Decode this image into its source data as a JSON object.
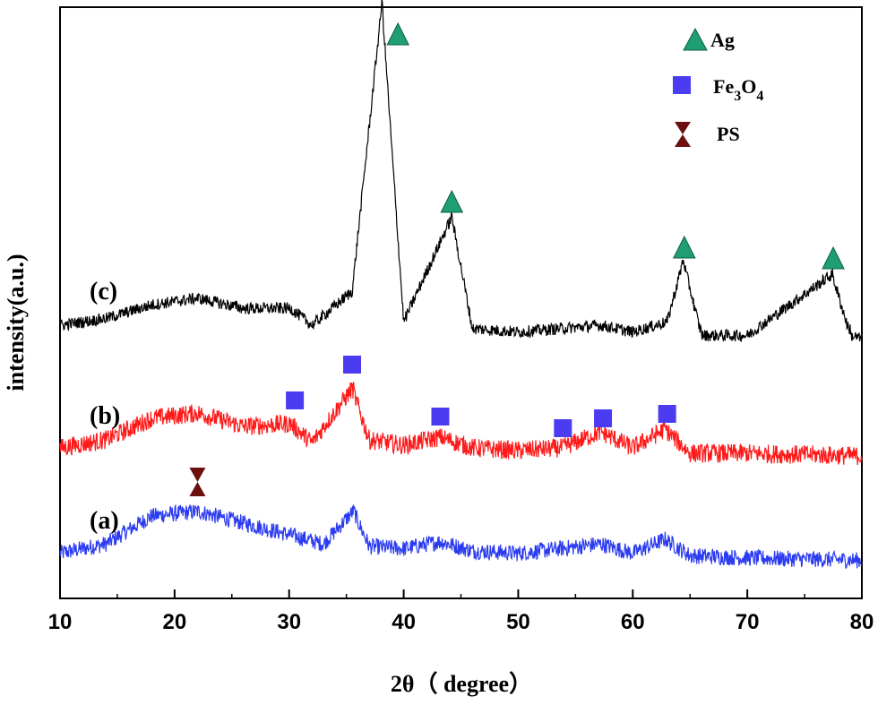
{
  "chart_data": {
    "type": "line",
    "xlabel": "2θ（ degree）",
    "ylabel": "intensity(a.u.)",
    "xlim": [
      10,
      80
    ],
    "xticks": [
      10,
      20,
      30,
      40,
      50,
      60,
      70,
      80
    ],
    "xtick_labels": [
      "10",
      "20",
      "30",
      "40",
      "50",
      "60",
      "70",
      "80"
    ],
    "y_ticks_shown": false,
    "grid": false,
    "colors": {
      "a": "#2b3bf0",
      "b": "#ff1a1a",
      "c": "#000000",
      "ag": "#1f9e73",
      "fe3o4": "#4b3cf2",
      "ps": "#6b0f0f"
    },
    "series": [
      {
        "name": "(a)",
        "baseline": 0.05,
        "points": [
          [
            10,
            0.04
          ],
          [
            14,
            0.08
          ],
          [
            18,
            0.2
          ],
          [
            22,
            0.22
          ],
          [
            26,
            0.17
          ],
          [
            30,
            0.12
          ],
          [
            33,
            0.08
          ],
          [
            35.6,
            0.22
          ],
          [
            37,
            0.07
          ],
          [
            40,
            0.06
          ],
          [
            43.2,
            0.09
          ],
          [
            46,
            0.05
          ],
          [
            50,
            0.04
          ],
          [
            53.7,
            0.06
          ],
          [
            57.2,
            0.08
          ],
          [
            60,
            0.04
          ],
          [
            62.8,
            0.1
          ],
          [
            65,
            0.03
          ],
          [
            70,
            0.02
          ],
          [
            80,
            0.01
          ]
        ]
      },
      {
        "name": "(b)",
        "baseline": 0.05,
        "points": [
          [
            10,
            0.04
          ],
          [
            14,
            0.07
          ],
          [
            18,
            0.15
          ],
          [
            22,
            0.17
          ],
          [
            26,
            0.12
          ],
          [
            30.1,
            0.13
          ],
          [
            32,
            0.06
          ],
          [
            35.5,
            0.26
          ],
          [
            37,
            0.07
          ],
          [
            40,
            0.05
          ],
          [
            43.2,
            0.08
          ],
          [
            46,
            0.04
          ],
          [
            50,
            0.03
          ],
          [
            53.8,
            0.04
          ],
          [
            57.2,
            0.1
          ],
          [
            60,
            0.04
          ],
          [
            62.8,
            0.11
          ],
          [
            65,
            0.02
          ],
          [
            70,
            0.02
          ],
          [
            80,
            0.01
          ]
        ]
      },
      {
        "name": "(c)",
        "baseline": 0.05,
        "points": [
          [
            10,
            0.05
          ],
          [
            14,
            0.07
          ],
          [
            18,
            0.11
          ],
          [
            22,
            0.13
          ],
          [
            26,
            0.1
          ],
          [
            30.1,
            0.1
          ],
          [
            32,
            0.05
          ],
          [
            35.5,
            0.15
          ],
          [
            38.1,
            1.0
          ],
          [
            40,
            0.06
          ],
          [
            44.2,
            0.37
          ],
          [
            46,
            0.04
          ],
          [
            50,
            0.03
          ],
          [
            57.2,
            0.05
          ],
          [
            60,
            0.03
          ],
          [
            63,
            0.06
          ],
          [
            64.4,
            0.24
          ],
          [
            66,
            0.02
          ],
          [
            70,
            0.02
          ],
          [
            77.4,
            0.2
          ],
          [
            79,
            0.02
          ],
          [
            80,
            0.01
          ]
        ]
      }
    ],
    "markers": [
      {
        "type": "Ag",
        "points": [
          [
            39.5,
            1.0
          ],
          [
            44.2,
            1.0
          ],
          [
            64.5,
            1.0
          ],
          [
            77.5,
            1.0
          ]
        ]
      },
      {
        "type": "Fe3O4",
        "points": [
          [
            30.5,
            1.0
          ],
          [
            35.5,
            1.0
          ],
          [
            43.2,
            1.0
          ],
          [
            53.9,
            1.0
          ],
          [
            57.4,
            1.0
          ],
          [
            63.0,
            1.0
          ]
        ]
      },
      {
        "type": "PS",
        "points": [
          [
            22.0,
            1.0
          ]
        ]
      }
    ],
    "legend": {
      "position": "top-right",
      "items": [
        {
          "key": "ag",
          "label": "Ag"
        },
        {
          "key": "fe3o4",
          "label_main": "Fe",
          "sub1": "3",
          "mid": "O",
          "sub2": "4"
        },
        {
          "key": "ps",
          "label": "PS"
        }
      ]
    }
  }
}
